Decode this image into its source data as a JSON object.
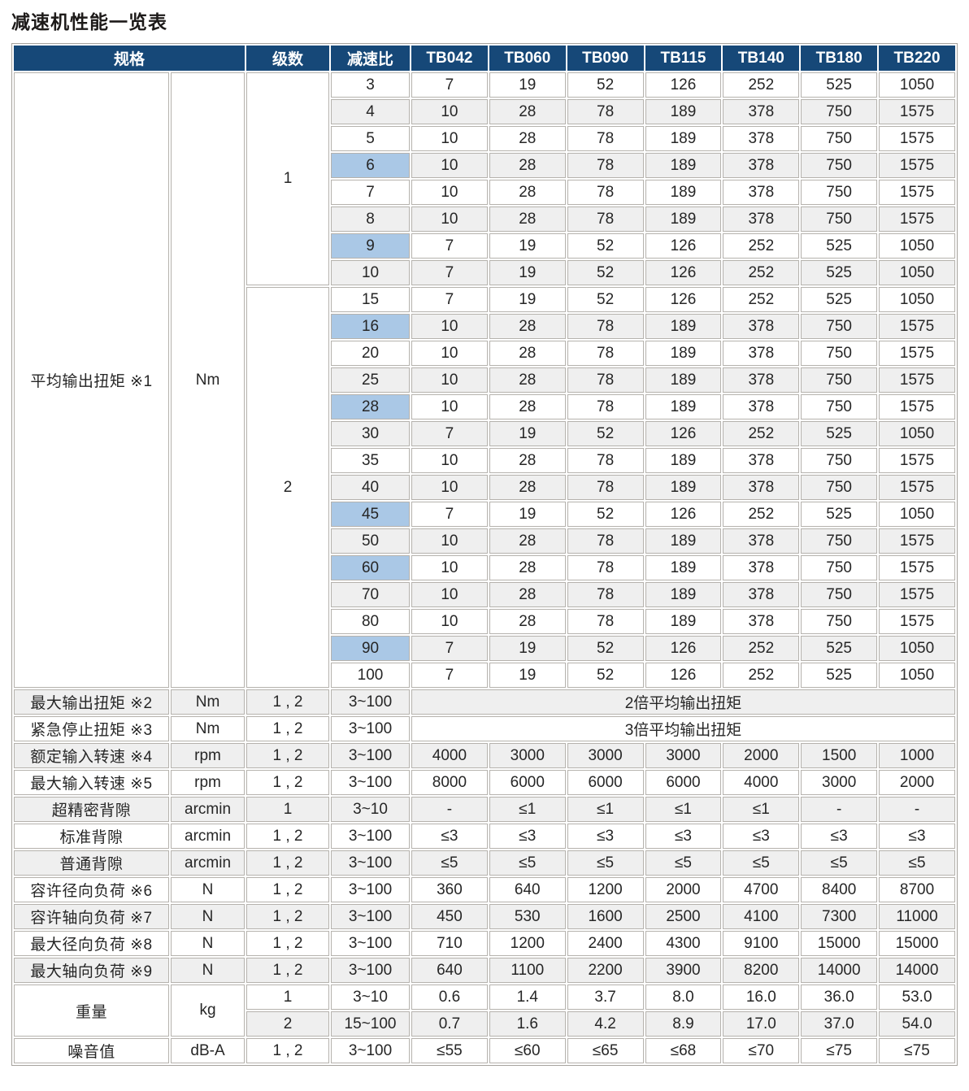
{
  "title": "减速机性能一览表",
  "colors": {
    "header_bg": "#164878",
    "header_fg": "#ffffff",
    "row_stripe": "#efefef",
    "ratio_highlight": "#aac8e6",
    "cell_border": "#b5b2ad"
  },
  "table": {
    "header": {
      "spec": "规格",
      "stages": "级数",
      "ratio": "减速比",
      "models": [
        "TB042",
        "TB060",
        "TB090",
        "TB115",
        "TB140",
        "TB180",
        "TB220"
      ]
    },
    "torque": {
      "label": "平均输出扭矩 ※1",
      "unit": "Nm",
      "groups": [
        {
          "stage": "1",
          "rows": [
            {
              "ratio": "3",
              "hl": false,
              "values": [
                "7",
                "19",
                "52",
                "126",
                "252",
                "525",
                "1050"
              ]
            },
            {
              "ratio": "4",
              "hl": false,
              "values": [
                "10",
                "28",
                "78",
                "189",
                "378",
                "750",
                "1575"
              ]
            },
            {
              "ratio": "5",
              "hl": false,
              "values": [
                "10",
                "28",
                "78",
                "189",
                "378",
                "750",
                "1575"
              ]
            },
            {
              "ratio": "6",
              "hl": true,
              "values": [
                "10",
                "28",
                "78",
                "189",
                "378",
                "750",
                "1575"
              ]
            },
            {
              "ratio": "7",
              "hl": false,
              "values": [
                "10",
                "28",
                "78",
                "189",
                "378",
                "750",
                "1575"
              ]
            },
            {
              "ratio": "8",
              "hl": false,
              "values": [
                "10",
                "28",
                "78",
                "189",
                "378",
                "750",
                "1575"
              ]
            },
            {
              "ratio": "9",
              "hl": true,
              "values": [
                "7",
                "19",
                "52",
                "126",
                "252",
                "525",
                "1050"
              ]
            },
            {
              "ratio": "10",
              "hl": false,
              "values": [
                "7",
                "19",
                "52",
                "126",
                "252",
                "525",
                "1050"
              ]
            }
          ]
        },
        {
          "stage": "2",
          "rows": [
            {
              "ratio": "15",
              "hl": false,
              "values": [
                "7",
                "19",
                "52",
                "126",
                "252",
                "525",
                "1050"
              ]
            },
            {
              "ratio": "16",
              "hl": true,
              "values": [
                "10",
                "28",
                "78",
                "189",
                "378",
                "750",
                "1575"
              ]
            },
            {
              "ratio": "20",
              "hl": false,
              "values": [
                "10",
                "28",
                "78",
                "189",
                "378",
                "750",
                "1575"
              ]
            },
            {
              "ratio": "25",
              "hl": false,
              "values": [
                "10",
                "28",
                "78",
                "189",
                "378",
                "750",
                "1575"
              ]
            },
            {
              "ratio": "28",
              "hl": true,
              "values": [
                "10",
                "28",
                "78",
                "189",
                "378",
                "750",
                "1575"
              ]
            },
            {
              "ratio": "30",
              "hl": false,
              "values": [
                "7",
                "19",
                "52",
                "126",
                "252",
                "525",
                "1050"
              ]
            },
            {
              "ratio": "35",
              "hl": false,
              "values": [
                "10",
                "28",
                "78",
                "189",
                "378",
                "750",
                "1575"
              ]
            },
            {
              "ratio": "40",
              "hl": false,
              "values": [
                "10",
                "28",
                "78",
                "189",
                "378",
                "750",
                "1575"
              ]
            },
            {
              "ratio": "45",
              "hl": true,
              "values": [
                "7",
                "19",
                "52",
                "126",
                "252",
                "525",
                "1050"
              ]
            },
            {
              "ratio": "50",
              "hl": false,
              "values": [
                "10",
                "28",
                "78",
                "189",
                "378",
                "750",
                "1575"
              ]
            },
            {
              "ratio": "60",
              "hl": true,
              "values": [
                "10",
                "28",
                "78",
                "189",
                "378",
                "750",
                "1575"
              ]
            },
            {
              "ratio": "70",
              "hl": false,
              "values": [
                "10",
                "28",
                "78",
                "189",
                "378",
                "750",
                "1575"
              ]
            },
            {
              "ratio": "80",
              "hl": false,
              "values": [
                "10",
                "28",
                "78",
                "189",
                "378",
                "750",
                "1575"
              ]
            },
            {
              "ratio": "90",
              "hl": true,
              "values": [
                "7",
                "19",
                "52",
                "126",
                "252",
                "525",
                "1050"
              ]
            },
            {
              "ratio": "100",
              "hl": false,
              "values": [
                "7",
                "19",
                "52",
                "126",
                "252",
                "525",
                "1050"
              ]
            }
          ]
        }
      ]
    },
    "spec_rows": [
      {
        "label": "最大输出扭矩 ※2",
        "unit": "Nm",
        "stages": "1 , 2",
        "ratio": "3~100",
        "span_text": "2倍平均输出扭矩"
      },
      {
        "label": "紧急停止扭矩 ※3",
        "unit": "Nm",
        "stages": "1 , 2",
        "ratio": "3~100",
        "span_text": "3倍平均输出扭矩"
      },
      {
        "label": "额定输入转速 ※4",
        "unit": "rpm",
        "stages": "1 , 2",
        "ratio": "3~100",
        "values": [
          "4000",
          "3000",
          "3000",
          "3000",
          "2000",
          "1500",
          "1000"
        ]
      },
      {
        "label": "最大输入转速 ※5",
        "unit": "rpm",
        "stages": "1 , 2",
        "ratio": "3~100",
        "values": [
          "8000",
          "6000",
          "6000",
          "6000",
          "4000",
          "3000",
          "2000"
        ]
      },
      {
        "label": "超精密背隙",
        "unit": "arcmin",
        "stages": "1",
        "ratio": "3~10",
        "values": [
          "-",
          "≤1",
          "≤1",
          "≤1",
          "≤1",
          "-",
          "-"
        ]
      },
      {
        "label": "标准背隙",
        "unit": "arcmin",
        "stages": "1 , 2",
        "ratio": "3~100",
        "values": [
          "≤3",
          "≤3",
          "≤3",
          "≤3",
          "≤3",
          "≤3",
          "≤3"
        ]
      },
      {
        "label": "普通背隙",
        "unit": "arcmin",
        "stages": "1 , 2",
        "ratio": "3~100",
        "values": [
          "≤5",
          "≤5",
          "≤5",
          "≤5",
          "≤5",
          "≤5",
          "≤5"
        ]
      },
      {
        "label": "容许径向负荷 ※6",
        "unit": "N",
        "stages": "1 , 2",
        "ratio": "3~100",
        "values": [
          "360",
          "640",
          "1200",
          "2000",
          "4700",
          "8400",
          "8700"
        ]
      },
      {
        "label": "容许轴向负荷 ※7",
        "unit": "N",
        "stages": "1 , 2",
        "ratio": "3~100",
        "values": [
          "450",
          "530",
          "1600",
          "2500",
          "4100",
          "7300",
          "11000"
        ]
      },
      {
        "label": "最大径向负荷 ※8",
        "unit": "N",
        "stages": "1 , 2",
        "ratio": "3~100",
        "values": [
          "710",
          "1200",
          "2400",
          "4300",
          "9100",
          "15000",
          "15000"
        ]
      },
      {
        "label": "最大轴向负荷 ※9",
        "unit": "N",
        "stages": "1 , 2",
        "ratio": "3~100",
        "values": [
          "640",
          "1100",
          "2200",
          "3900",
          "8200",
          "14000",
          "14000"
        ]
      }
    ],
    "weight": {
      "label": "重量",
      "unit": "kg",
      "rows": [
        {
          "stages": "1",
          "ratio": "3~10",
          "values": [
            "0.6",
            "1.4",
            "3.7",
            "8.0",
            "16.0",
            "36.0",
            "53.0"
          ]
        },
        {
          "stages": "2",
          "ratio": "15~100",
          "values": [
            "0.7",
            "1.6",
            "4.2",
            "8.9",
            "17.0",
            "37.0",
            "54.0"
          ]
        }
      ]
    },
    "noise": {
      "label": "噪音值",
      "unit": "dB-A",
      "stages": "1 , 2",
      "ratio": "3~100",
      "values": [
        "≤55",
        "≤60",
        "≤65",
        "≤68",
        "≤70",
        "≤75",
        "≤75"
      ]
    }
  }
}
